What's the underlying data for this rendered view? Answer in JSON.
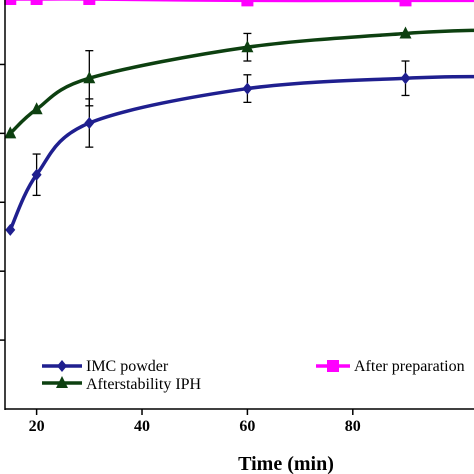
{
  "chart_data": {
    "type": "line",
    "xlabel": "Time (min)",
    "xlim": [
      14,
      103
    ],
    "ylim": [
      0,
      110
    ],
    "x_ticks": [
      20,
      40,
      60,
      80
    ],
    "series": [
      {
        "name": "IMC powder",
        "color": "#1f1f8f",
        "marker": "diamond",
        "x": [
          15,
          20,
          30,
          60,
          90,
          105
        ],
        "y": [
          52.0,
          68.0,
          83.0,
          93.0,
          96.0,
          96.5
        ],
        "err": [
          0,
          6,
          7,
          4,
          5,
          0
        ]
      },
      {
        "name": "Afterstability IPH",
        "color": "#0d4010",
        "marker": "triangle",
        "x": [
          15,
          20,
          30,
          60,
          90,
          105
        ],
        "y": [
          80.0,
          87.0,
          96.0,
          105.0,
          109.0,
          110.0
        ],
        "err": [
          0,
          0,
          8,
          4,
          0,
          0
        ]
      },
      {
        "name": "After preparation",
        "color": "#ff00ff",
        "marker": "square",
        "x": [
          15,
          20,
          30,
          60,
          90,
          105
        ],
        "y": [
          119.0,
          119.0,
          119.0,
          118.6,
          118.6,
          118.6
        ],
        "err": [
          0,
          0,
          0,
          0,
          0,
          0
        ]
      }
    ]
  }
}
